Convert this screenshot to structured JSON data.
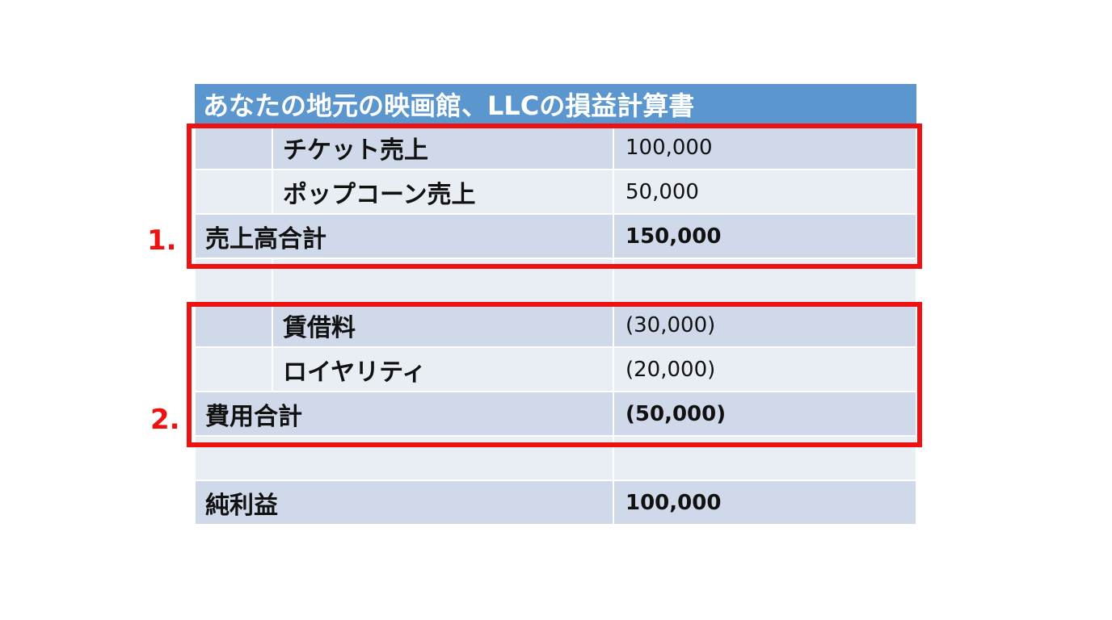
{
  "title": "あなたの地元の映画館、LLCの損益計算書",
  "rows": [
    {
      "label": "",
      "sub": "チケット売上",
      "value": "100,000"
    },
    {
      "label": "",
      "sub": "ポップコーン売上",
      "value": "50,000"
    },
    {
      "label": "売上高合計",
      "sub": "",
      "value": "150,000"
    },
    {
      "label": "",
      "sub": "",
      "value": ""
    },
    {
      "label": "",
      "sub": "賃借料",
      "value": "(30,000)"
    },
    {
      "label": "",
      "sub": "ロイヤリティ",
      "value": "(20,000)"
    },
    {
      "label": "費用合計",
      "sub": "",
      "value": "(50,000)"
    },
    {
      "label": "",
      "sub": "",
      "value": ""
    },
    {
      "label": "純利益",
      "sub": "",
      "value": "100,000"
    }
  ],
  "markers": {
    "first": "1.",
    "second": "2."
  },
  "colors": {
    "header": "#5b96ce",
    "row_dark": "#d0d9e9",
    "row_light": "#e9edf4",
    "highlight": "#ee1111"
  }
}
